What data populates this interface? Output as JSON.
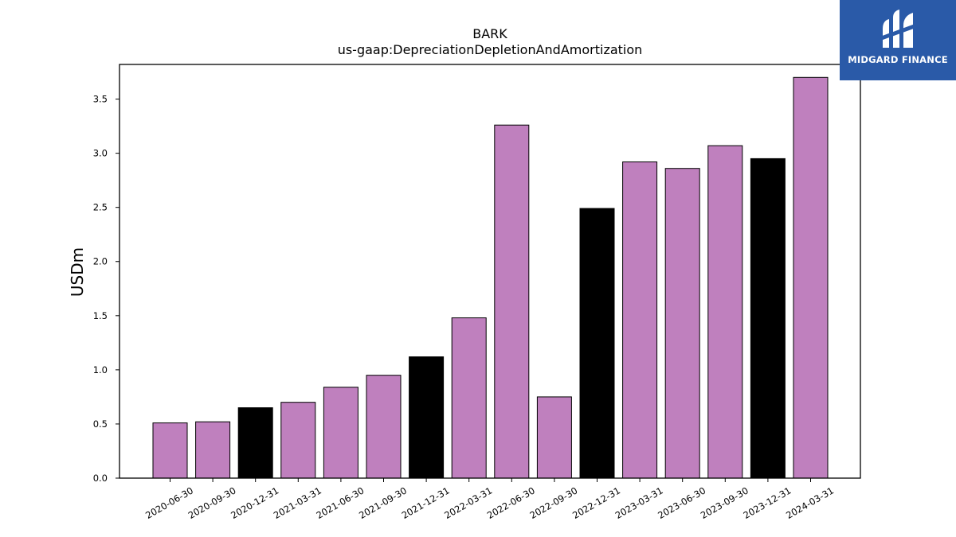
{
  "chart_data": {
    "type": "bar",
    "title": "BARK",
    "subtitle": "us-gaap:DepreciationDepletionAndAmortization",
    "xlabel": "",
    "ylabel": "USDm",
    "ylim": [
      0,
      3.82
    ],
    "yticks": [
      "0.0",
      "0.5",
      "1.0",
      "1.5",
      "2.0",
      "2.5",
      "3.0",
      "3.5"
    ],
    "grid": false,
    "categories": [
      "2020-06-30",
      "2020-09-30",
      "2020-12-31",
      "2021-03-31",
      "2021-06-30",
      "2021-09-30",
      "2021-12-31",
      "2022-03-31",
      "2022-06-30",
      "2022-09-30",
      "2022-12-31",
      "2023-03-31",
      "2023-06-30",
      "2023-09-30",
      "2023-12-31",
      "2024-03-31"
    ],
    "values": [
      0.51,
      0.52,
      0.65,
      0.7,
      0.84,
      0.95,
      1.12,
      1.48,
      3.26,
      0.75,
      2.49,
      2.92,
      2.86,
      3.07,
      2.95,
      3.7
    ],
    "bar_colors": [
      "#bf80be",
      "#bf80be",
      "#000000",
      "#bf80be",
      "#bf80be",
      "#bf80be",
      "#000000",
      "#bf80be",
      "#bf80be",
      "#bf80be",
      "#000000",
      "#bf80be",
      "#bf80be",
      "#bf80be",
      "#000000",
      "#bf80be"
    ]
  },
  "logo": {
    "text": "MIDGARD FINANCE",
    "background": "#2a5aa8"
  }
}
